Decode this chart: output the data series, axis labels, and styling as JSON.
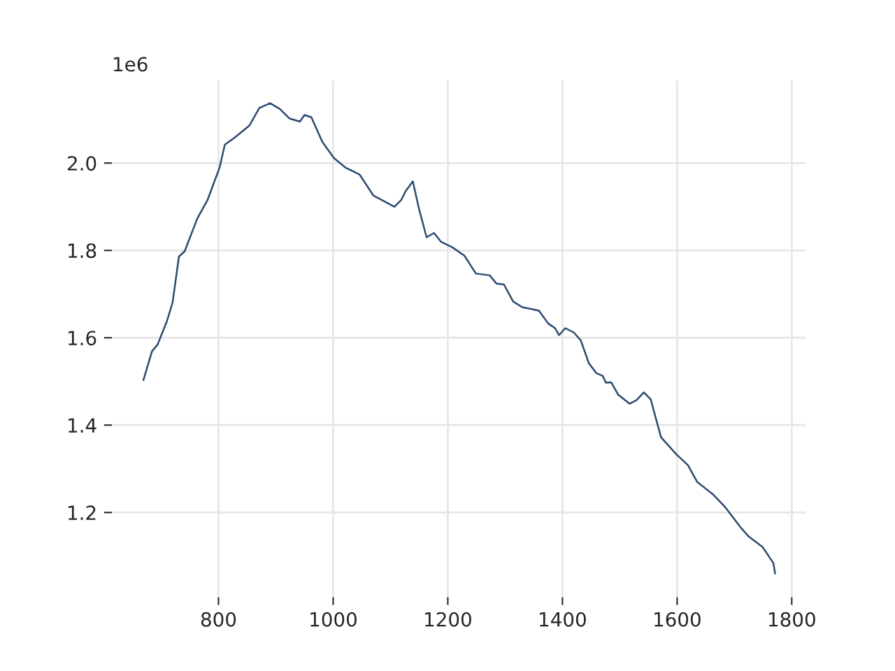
{
  "chart_data": {
    "type": "line",
    "x": [
      669,
      684,
      694,
      710,
      720,
      731,
      741,
      763,
      781,
      802,
      811,
      830,
      854,
      871,
      890,
      907,
      924,
      942,
      950,
      962,
      981,
      1001,
      1021,
      1046,
      1070,
      1107,
      1119,
      1127,
      1139,
      1150,
      1163,
      1176,
      1188,
      1208,
      1229,
      1249,
      1273,
      1285,
      1298,
      1314,
      1330,
      1359,
      1375,
      1387,
      1394,
      1405,
      1420,
      1432,
      1446,
      1459,
      1470,
      1476,
      1485,
      1497,
      1517,
      1529,
      1542,
      1554,
      1562,
      1572,
      1598,
      1619,
      1635,
      1663,
      1684,
      1712,
      1724,
      1749,
      1768,
      1771
    ],
    "series": [
      {
        "color": "#2c4a70",
        "values": [
          1.503,
          1.569,
          1.585,
          1.638,
          1.681,
          1.786,
          1.798,
          1.873,
          1.916,
          1.99,
          2.042,
          2.06,
          2.086,
          2.126,
          2.137,
          2.124,
          2.102,
          2.095,
          2.11,
          2.105,
          2.049,
          2.012,
          1.99,
          1.974,
          1.926,
          1.9,
          1.916,
          1.937,
          1.958,
          1.894,
          1.83,
          1.84,
          1.82,
          1.807,
          1.788,
          1.747,
          1.743,
          1.724,
          1.722,
          1.683,
          1.67,
          1.662,
          1.633,
          1.622,
          1.606,
          1.622,
          1.612,
          1.594,
          1.542,
          1.519,
          1.513,
          1.497,
          1.498,
          1.47,
          1.449,
          1.457,
          1.475,
          1.459,
          1.42,
          1.372,
          1.334,
          1.308,
          1.27,
          1.241,
          1.212,
          1.164,
          1.146,
          1.121,
          1.084,
          1.06
        ]
      }
    ],
    "xlim": [
      614,
      1824
    ],
    "ylim": [
      1.006,
      2.189
    ],
    "xticks": [
      800,
      1000,
      1200,
      1400,
      1600,
      1800
    ],
    "yticks": [
      1.2,
      1.4,
      1.6,
      1.8,
      {
        "value": 2,
        "label": "2.0"
      }
    ],
    "annotations": [
      "1e6"
    ],
    "grid": true,
    "marker": "none",
    "line_style": "solid"
  }
}
